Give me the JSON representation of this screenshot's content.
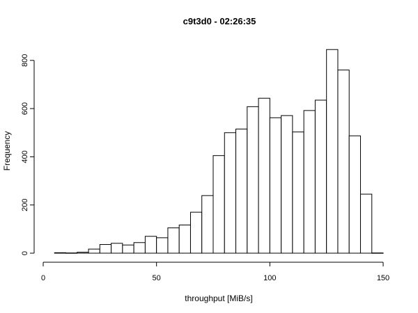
{
  "chart_data": {
    "type": "bar",
    "title": "c9t3d0 - 02:26:35",
    "xlabel": "throughput [MiB/s]",
    "ylabel": "Frequency",
    "xlim": [
      0,
      150
    ],
    "ylim": [
      0,
      850
    ],
    "x_ticks": [
      0,
      50,
      100,
      150
    ],
    "y_ticks": [
      0,
      200,
      400,
      600,
      800
    ],
    "bin_width": 5,
    "bins": [
      {
        "start": 5,
        "end": 10,
        "count": 2
      },
      {
        "start": 10,
        "end": 15,
        "count": 1
      },
      {
        "start": 15,
        "end": 20,
        "count": 4
      },
      {
        "start": 20,
        "end": 25,
        "count": 17
      },
      {
        "start": 25,
        "end": 30,
        "count": 36
      },
      {
        "start": 30,
        "end": 35,
        "count": 41
      },
      {
        "start": 35,
        "end": 40,
        "count": 34
      },
      {
        "start": 40,
        "end": 45,
        "count": 44
      },
      {
        "start": 45,
        "end": 50,
        "count": 70
      },
      {
        "start": 50,
        "end": 55,
        "count": 64
      },
      {
        "start": 55,
        "end": 60,
        "count": 105
      },
      {
        "start": 60,
        "end": 65,
        "count": 117
      },
      {
        "start": 65,
        "end": 70,
        "count": 170
      },
      {
        "start": 70,
        "end": 75,
        "count": 239
      },
      {
        "start": 75,
        "end": 80,
        "count": 405
      },
      {
        "start": 80,
        "end": 85,
        "count": 500
      },
      {
        "start": 85,
        "end": 90,
        "count": 515
      },
      {
        "start": 90,
        "end": 95,
        "count": 608
      },
      {
        "start": 95,
        "end": 100,
        "count": 643
      },
      {
        "start": 100,
        "end": 105,
        "count": 562
      },
      {
        "start": 105,
        "end": 110,
        "count": 571
      },
      {
        "start": 110,
        "end": 115,
        "count": 503
      },
      {
        "start": 115,
        "end": 120,
        "count": 592
      },
      {
        "start": 120,
        "end": 125,
        "count": 635
      },
      {
        "start": 125,
        "end": 130,
        "count": 845
      },
      {
        "start": 130,
        "end": 135,
        "count": 760
      },
      {
        "start": 135,
        "end": 140,
        "count": 487
      },
      {
        "start": 140,
        "end": 145,
        "count": 245
      },
      {
        "start": 145,
        "end": 150,
        "count": 1
      }
    ]
  }
}
